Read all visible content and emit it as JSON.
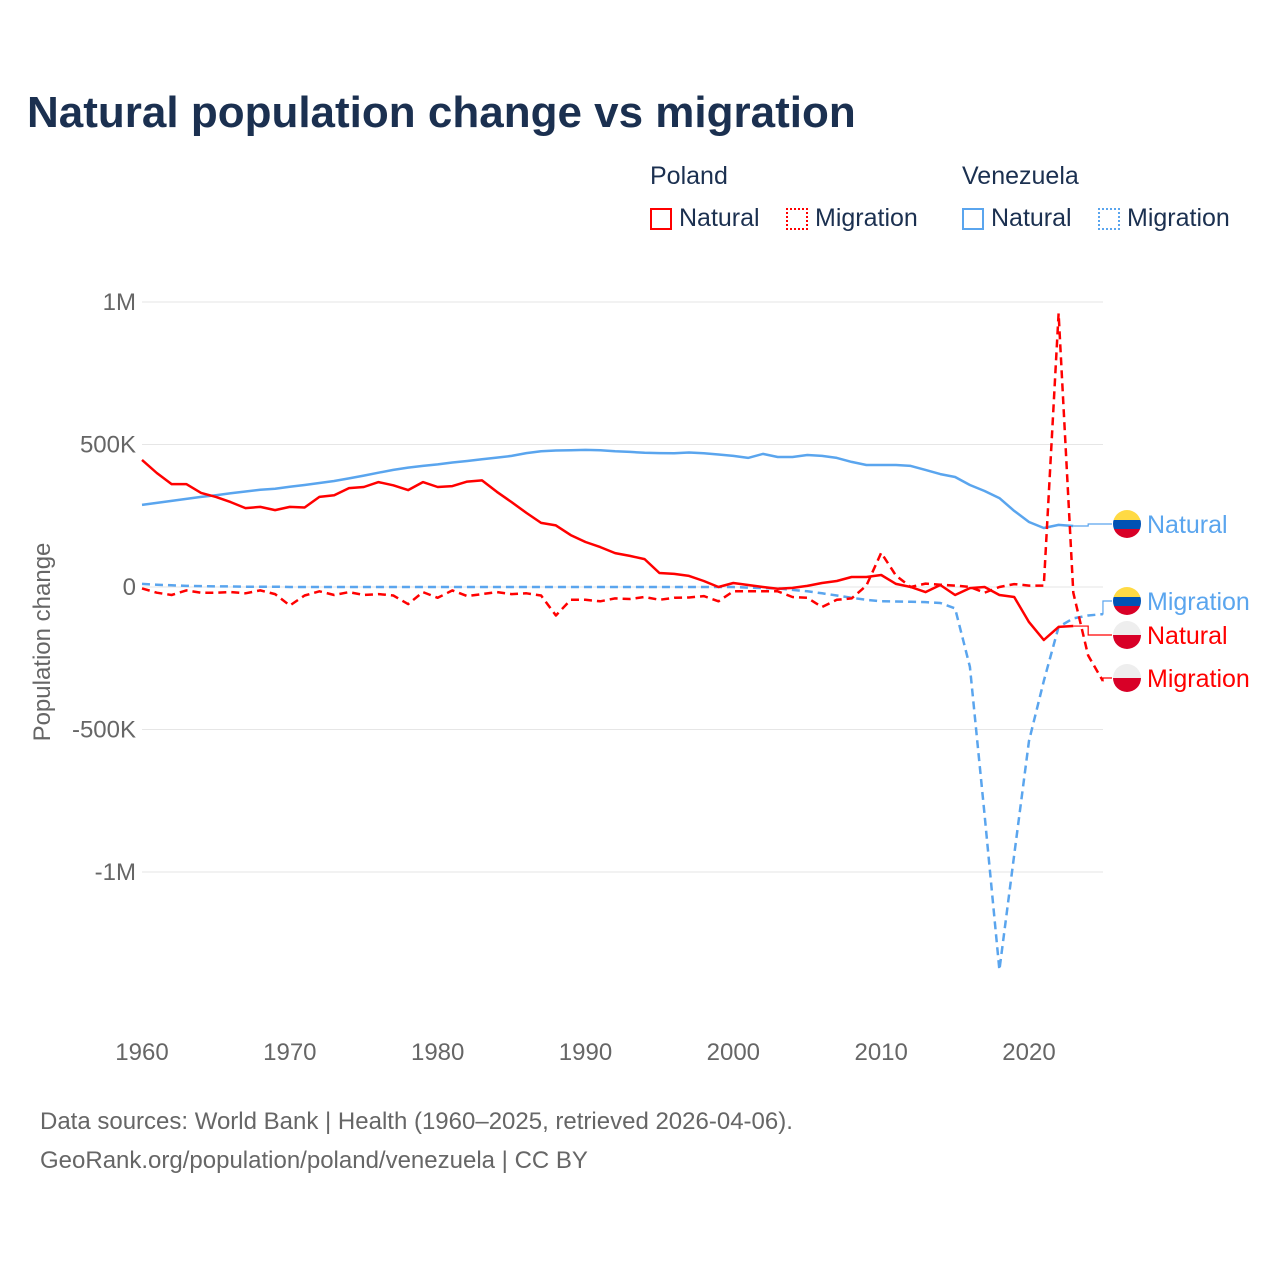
{
  "title": "Natural population change vs migration",
  "legend": {
    "groups": [
      {
        "name": "Poland",
        "items": [
          {
            "label": "Natural",
            "color": "#ff0000",
            "style": "solid"
          },
          {
            "label": "Migration",
            "color": "#ff0000",
            "style": "dotted"
          }
        ]
      },
      {
        "name": "Venezuela",
        "items": [
          {
            "label": "Natural",
            "color": "#5aa5ee",
            "style": "solid"
          },
          {
            "label": "Migration",
            "color": "#5aa5ee",
            "style": "dotted"
          }
        ]
      }
    ]
  },
  "footer": {
    "line1": "Data sources: World Bank | Health (1960–2025, retrieved 2026-04-06).",
    "line2": "GeoRank.org/population/poland/venezuela | CC BY"
  },
  "chart_data": {
    "type": "line",
    "title": "Natural population change vs migration",
    "xlabel": "",
    "ylabel": "Population change",
    "xlim": [
      1960,
      2025
    ],
    "ylim": [
      -1400000,
      1000000
    ],
    "yticks": [
      {
        "v": 1000000,
        "label": "1M"
      },
      {
        "v": 500000,
        "label": "500K"
      },
      {
        "v": 0,
        "label": "0"
      },
      {
        "v": -500000,
        "label": "-500K"
      },
      {
        "v": -1000000,
        "label": "-1M"
      }
    ],
    "xticks": [
      {
        "v": 1960,
        "label": "1960"
      },
      {
        "v": 1970,
        "label": "1970"
      },
      {
        "v": 1980,
        "label": "1980"
      },
      {
        "v": 1990,
        "label": "1990"
      },
      {
        "v": 2000,
        "label": "2000"
      },
      {
        "v": 2010,
        "label": "2010"
      },
      {
        "v": 2020,
        "label": "2020"
      }
    ],
    "grid": true,
    "series": [
      {
        "name": "Venezuela Natural",
        "label": "Natural",
        "country": "Venezuela",
        "color": "#5aa5ee",
        "dash": false,
        "start": 1960,
        "values": [
          288000,
          295000,
          302000,
          309000,
          316000,
          322000,
          329000,
          335000,
          341000,
          345000,
          352000,
          358000,
          365000,
          372000,
          381000,
          391000,
          401000,
          411000,
          419000,
          425000,
          430000,
          437000,
          442000,
          448000,
          454000,
          460000,
          470000,
          476000,
          479000,
          480000,
          481000,
          480000,
          476000,
          474000,
          471000,
          470000,
          469000,
          472000,
          469000,
          465000,
          460000,
          453000,
          467000,
          456000,
          456000,
          463000,
          460000,
          453000,
          439000,
          428000,
          428000,
          428000,
          425000,
          411000,
          396000,
          386000,
          358000,
          337000,
          312000,
          267000,
          228000,
          207000,
          218000,
          214000
        ]
      },
      {
        "name": "Venezuela Migration",
        "label": "Migration",
        "country": "Venezuela",
        "color": "#5aa5ee",
        "dash": true,
        "start": 1960,
        "values": [
          11000,
          8000,
          6000,
          4000,
          3000,
          2000,
          2000,
          1000,
          1000,
          1000,
          0,
          0,
          0,
          0,
          0,
          0,
          0,
          0,
          0,
          0,
          0,
          0,
          0,
          0,
          0,
          0,
          0,
          0,
          0,
          0,
          0,
          0,
          0,
          0,
          0,
          0,
          0,
          0,
          0,
          0,
          0,
          -2000,
          -4000,
          -5000,
          -10000,
          -15000,
          -22000,
          -30000,
          -38000,
          -45000,
          -50000,
          -51000,
          -52000,
          -53000,
          -56000,
          -75000,
          -280000,
          -800000,
          -1344000,
          -940000,
          -540000,
          -330000,
          -140000,
          -110000,
          -100000,
          -95000
        ]
      },
      {
        "name": "Poland Natural",
        "label": "Natural",
        "country": "Poland",
        "color": "#ff0000",
        "dash": false,
        "start": 1960,
        "values": [
          446000,
          400000,
          361000,
          361000,
          330000,
          316000,
          298000,
          277000,
          281000,
          270000,
          281000,
          279000,
          316000,
          322000,
          347000,
          351000,
          368000,
          357000,
          340000,
          368000,
          351000,
          354000,
          370000,
          374000,
          334000,
          298000,
          260000,
          225000,
          216000,
          182000,
          158000,
          140000,
          119000,
          109000,
          98000,
          49000,
          46000,
          39000,
          21000,
          0,
          14000,
          7000,
          0,
          -6000,
          -3000,
          4000,
          14000,
          21000,
          35000,
          35000,
          42000,
          11000,
          0,
          -18000,
          7000,
          -28000,
          -4000,
          0,
          -28000,
          -35000,
          -123000,
          -186000,
          -140000,
          -137000
        ]
      },
      {
        "name": "Poland Migration",
        "label": "Migration",
        "country": "Poland",
        "color": "#ff0000",
        "dash": true,
        "start": 1960,
        "values": [
          -5000,
          -20000,
          -28000,
          -12000,
          -20000,
          -20000,
          -18000,
          -22000,
          -12000,
          -25000,
          -65000,
          -30000,
          -15000,
          -28000,
          -18000,
          -28000,
          -25000,
          -30000,
          -60000,
          -18000,
          -38000,
          -12000,
          -32000,
          -25000,
          -18000,
          -25000,
          -22000,
          -30000,
          -100000,
          -45000,
          -45000,
          -50000,
          -40000,
          -42000,
          -35000,
          -45000,
          -38000,
          -37000,
          -32000,
          -50000,
          -15000,
          -15000,
          -15000,
          -15000,
          -35000,
          -38000,
          -70000,
          -45000,
          -40000,
          5000,
          120000,
          40000,
          0,
          12000,
          8000,
          5000,
          0,
          -20000,
          0,
          10000,
          5000,
          5000,
          960000,
          -20000,
          -240000,
          -330000
        ]
      }
    ]
  }
}
